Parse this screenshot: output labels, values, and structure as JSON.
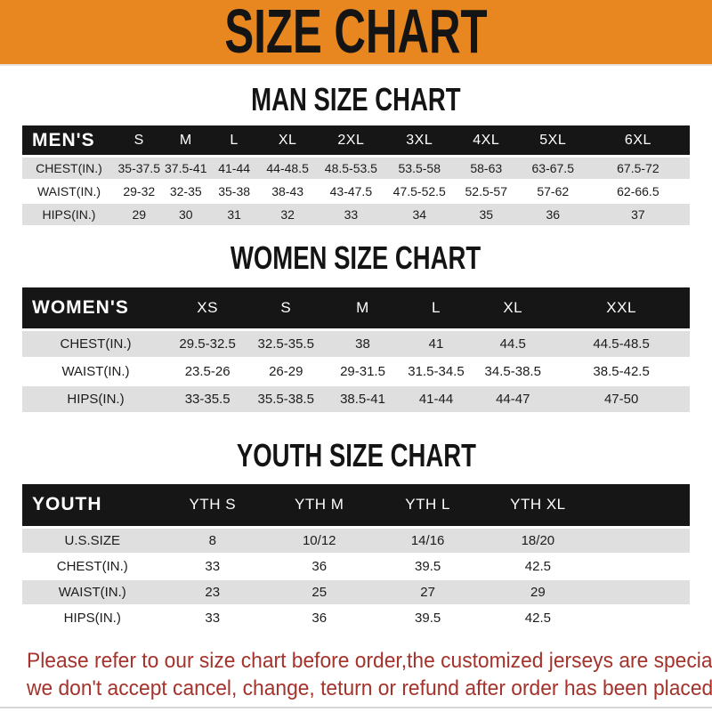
{
  "banner": {
    "title": "SIZE CHART"
  },
  "sections": [
    {
      "heading": "MAN SIZE CHART",
      "table": {
        "header": [
          "MEN'S",
          "S",
          "M",
          "L",
          "XL",
          "2XL",
          "3XL",
          "4XL",
          "5XL",
          "6XL"
        ],
        "rows": [
          [
            "CHEST(IN.)",
            "35-37.5",
            "37.5-41",
            "41-44",
            "44-48.5",
            "48.5-53.5",
            "53.5-58",
            "58-63",
            "63-67.5",
            "67.5-72"
          ],
          [
            "WAIST(IN.)",
            "29-32",
            "32-35",
            "35-38",
            "38-43",
            "43-47.5",
            "47.5-52.5",
            "52.5-57",
            "57-62",
            "62-66.5"
          ],
          [
            "HIPS(IN.)",
            "29",
            "30",
            "31",
            "32",
            "33",
            "34",
            "35",
            "36",
            "37"
          ]
        ]
      }
    },
    {
      "heading": "WOMEN SIZE CHART",
      "table": {
        "header": [
          "WOMEN'S",
          "XS",
          "S",
          "M",
          "L",
          "XL",
          "XXL"
        ],
        "rows": [
          [
            "CHEST(IN.)",
            "29.5-32.5",
            "32.5-35.5",
            "38",
            "41",
            "44.5",
            "44.5-48.5"
          ],
          [
            "WAIST(IN.)",
            "23.5-26",
            "26-29",
            "29-31.5",
            "31.5-34.5",
            "34.5-38.5",
            "38.5-42.5"
          ],
          [
            "HIPS(IN.)",
            "33-35.5",
            "35.5-38.5",
            "38.5-41",
            "41-44",
            "44-47",
            "47-50"
          ]
        ]
      }
    },
    {
      "heading": "YOUTH SIZE CHART",
      "table": {
        "header": [
          "YOUTH",
          "YTH S",
          "YTH M",
          "YTH L",
          "YTH XL"
        ],
        "rows": [
          [
            "U.S.SIZE",
            "8",
            "10/12",
            "14/16",
            "18/20"
          ],
          [
            "CHEST(IN.)",
            "33",
            "36",
            "39.5",
            "42.5"
          ],
          [
            "WAIST(IN.)",
            "23",
            "25",
            "27",
            "29"
          ],
          [
            "HIPS(IN.)",
            "33",
            "36",
            "39.5",
            "42.5"
          ]
        ]
      }
    }
  ],
  "footer": {
    "line1": "Please refer to our size chart before order,the customized jerseys are special products,",
    "line2": "we don't accept cancel, change, teturn or refund after order has been placed!"
  },
  "colors": {
    "banner_bg": "#E8871F",
    "banner_text": "#141414",
    "table_header_bg": "#161616",
    "table_header_text": "#FFFFFF",
    "row_shade": "#DFDFDF",
    "footer_text": "#A3332B"
  }
}
